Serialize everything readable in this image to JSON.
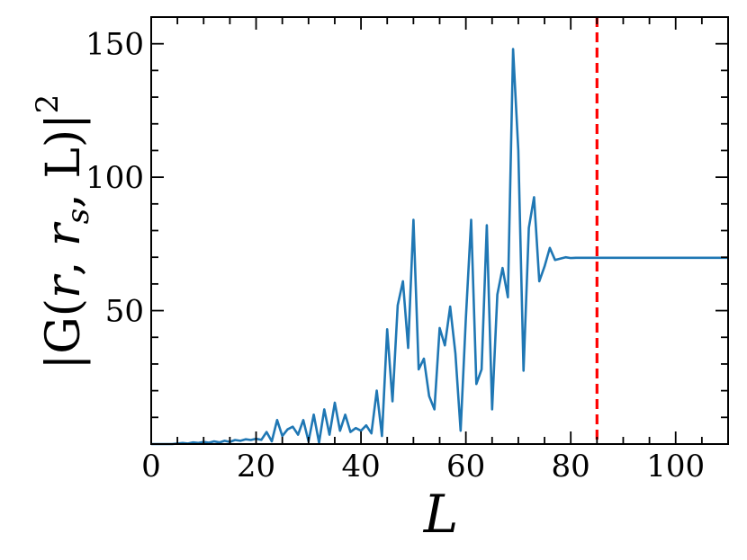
{
  "chart_data": {
    "type": "line",
    "xlabel": "L",
    "ylabel": "|G(r⃗, r⃗s, L)|²",
    "ylabel_parts": {
      "open": "|G(",
      "r1": "r",
      "comma1": ", ",
      "r2": "r",
      "sub": "s",
      "rest": ", L)|",
      "sup": "2"
    },
    "xlim": [
      0,
      110
    ],
    "ylim": [
      0,
      160
    ],
    "x_major_ticks": [
      0,
      20,
      40,
      60,
      80,
      100
    ],
    "x_tick_labels": [
      "0",
      "20",
      "40",
      "60",
      "80",
      "100"
    ],
    "y_major_ticks": [
      50,
      100,
      150
    ],
    "y_tick_labels": [
      "50",
      "100",
      "150"
    ],
    "grid": false,
    "legend": "none",
    "vline": {
      "x": 85,
      "color": "#ff0000",
      "style": "dashed"
    },
    "series": [
      {
        "color": "#1f77b4",
        "x": [
          0,
          1,
          2,
          3,
          4,
          5,
          6,
          7,
          8,
          9,
          10,
          11,
          12,
          13,
          14,
          15,
          16,
          17,
          18,
          19,
          20,
          21,
          22,
          23,
          24,
          25,
          26,
          27,
          28,
          29,
          30,
          31,
          32,
          33,
          34,
          35,
          36,
          37,
          38,
          39,
          40,
          41,
          42,
          43,
          44,
          45,
          46,
          47,
          48,
          49,
          50,
          51,
          52,
          53,
          54,
          55,
          56,
          57,
          58,
          59,
          60,
          61,
          62,
          63,
          64,
          65,
          66,
          67,
          68,
          69,
          70,
          71,
          72,
          73,
          74,
          75,
          76,
          77,
          78,
          79,
          80,
          81,
          82,
          83,
          84,
          85,
          86,
          87,
          88,
          89,
          90,
          91,
          92,
          93,
          94,
          95,
          96,
          97,
          98,
          99,
          100,
          101,
          102,
          103,
          104,
          105,
          106,
          107,
          108,
          109,
          110
        ],
        "y": [
          0,
          0,
          0,
          0,
          0,
          0.2,
          0.4,
          0.2,
          0.6,
          0.4,
          0.8,
          0.5,
          1.0,
          0.6,
          1.2,
          0.8,
          1.5,
          1.2,
          1.8,
          1.5,
          2.0,
          1.6,
          4.5,
          1.0,
          9.0,
          3.0,
          5.5,
          6.5,
          3.5,
          9.0,
          1.0,
          11.0,
          0.5,
          13.0,
          3.5,
          15.5,
          5.0,
          11.0,
          4.5,
          6.0,
          5.0,
          7.0,
          4.0,
          20.0,
          3.0,
          43.0,
          16.0,
          52.0,
          61.0,
          36.0,
          84.0,
          28.0,
          32.0,
          18.0,
          13.0,
          43.5,
          37.0,
          51.5,
          34.0,
          5.0,
          47.0,
          84.0,
          22.5,
          28.0,
          82.0,
          13.0,
          56.0,
          66.0,
          55.0,
          148.0,
          110.0,
          27.5,
          81.0,
          92.5,
          61.0,
          66.5,
          73.5,
          69.0,
          69.5,
          70.0,
          69.7,
          69.8,
          69.8,
          69.8,
          69.8,
          69.8,
          69.8,
          69.8,
          69.8,
          69.8,
          69.8,
          69.8,
          69.8,
          69.8,
          69.8,
          69.8,
          69.8,
          69.8,
          69.8,
          69.8,
          69.8,
          69.8,
          69.8,
          69.8,
          69.8,
          69.8,
          69.8,
          69.8,
          69.8,
          69.8,
          69.8
        ]
      }
    ]
  }
}
